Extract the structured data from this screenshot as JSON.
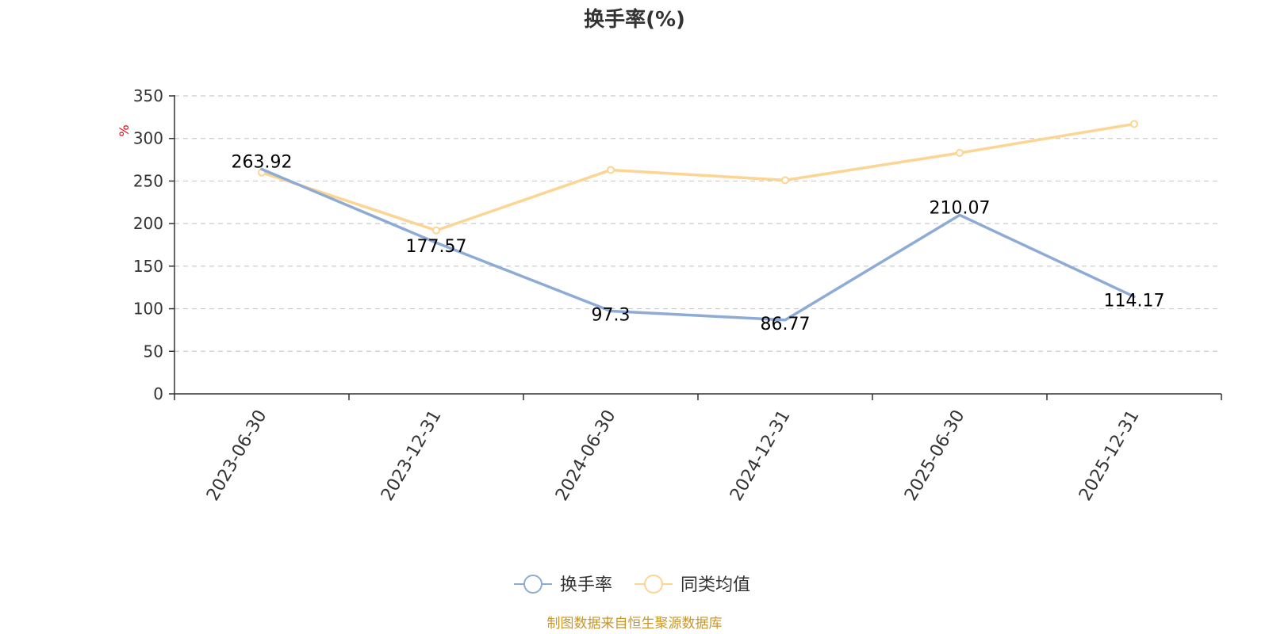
{
  "chart_data": {
    "type": "line",
    "title": "换手率(%)",
    "ylabel": "%",
    "xlabel": "",
    "categories": [
      "2023-06-30",
      "2023-12-31",
      "2024-06-30",
      "2024-12-31",
      "2025-06-30",
      "2025-12-31"
    ],
    "ylim": [
      0,
      350
    ],
    "yticks": [
      "0",
      "50",
      "100",
      "150",
      "200",
      "250",
      "300",
      "350"
    ],
    "grid": true,
    "legend_position": "bottom",
    "series": [
      {
        "name": "换手率",
        "values": [
          263.92,
          177.57,
          97.3,
          86.77,
          210.07,
          114.17
        ],
        "labels": [
          "263.92",
          "177.57",
          "97.3",
          "86.77",
          "210.07",
          "114.17"
        ],
        "color": "#8eabd6"
      },
      {
        "name": "同类均值",
        "values": [
          260,
          192,
          263,
          251,
          283,
          317
        ],
        "color": "#fcd592"
      }
    ]
  },
  "footer": {
    "source": "制图数据来自恒生聚源数据库"
  }
}
